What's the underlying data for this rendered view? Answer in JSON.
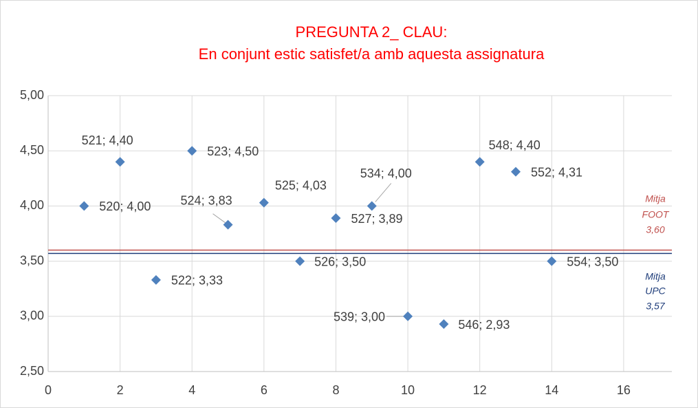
{
  "chart_data": {
    "type": "scatter",
    "title": [
      "PREGUNTA 2_ CLAU:",
      "En conjunt estic satisfet/a amb aquesta assignatura"
    ],
    "x": [
      1,
      2,
      3,
      4,
      5,
      6,
      7,
      8,
      9,
      10,
      11,
      12,
      13,
      14
    ],
    "values": [
      4.0,
      4.4,
      3.33,
      4.5,
      3.83,
      4.03,
      3.5,
      3.89,
      4.0,
      3.0,
      2.93,
      4.4,
      4.31,
      3.5
    ],
    "value_labels": [
      "520; 4,00",
      "521; 4,40",
      "522; 3,33",
      "523; 4,50",
      "524; 3,83",
      "525; 4,03",
      "526; 3,50",
      "527; 3,89",
      "534; 4,00",
      "539; 3,00",
      "546; 2,93",
      "548; 4,40",
      "552; 4,31",
      "554; 3,50"
    ],
    "color": "#4f81bd",
    "xlim": [
      0,
      17.34
    ],
    "xticks": [
      0,
      2,
      4,
      6,
      8,
      10,
      12,
      14,
      16
    ],
    "ylim": [
      2.5,
      5.0
    ],
    "yticks": [
      {
        "value": 2.5,
        "label": "2,50"
      },
      {
        "value": 3.0,
        "label": "3,00"
      },
      {
        "value": 3.5,
        "label": "3,50"
      },
      {
        "value": 4.0,
        "label": "4,00"
      },
      {
        "value": 4.5,
        "label": "4,50"
      },
      {
        "value": 5.0,
        "label": "5,00"
      }
    ],
    "grid": true,
    "reference_lines": [
      {
        "name": [
          "Mitja",
          "FOOT"
        ],
        "value": 3.6,
        "value_label": "3,60",
        "color": "#c0504d"
      },
      {
        "name": [
          "Mitja",
          "UPC"
        ],
        "value": 3.57,
        "value_label": "3,57",
        "color": "#1f3d7a"
      }
    ]
  }
}
